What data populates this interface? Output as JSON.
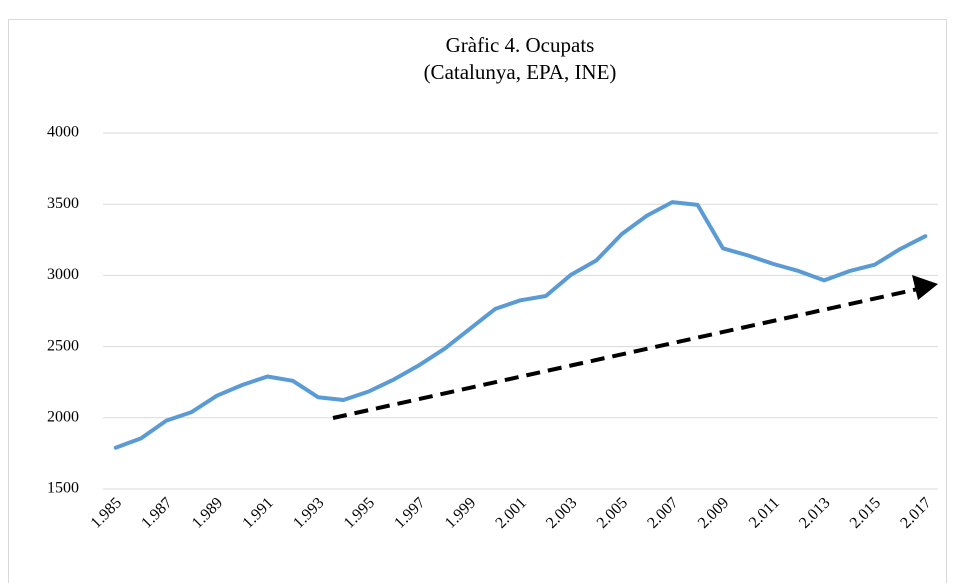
{
  "chart_data": {
    "type": "line",
    "title": "Gràfic 4. Ocupats",
    "subtitle": "(Catalunya, EPA, INE)",
    "categories": [
      "1.985",
      null,
      "1.987",
      null,
      "1.989",
      null,
      "1.991",
      null,
      "1.993",
      null,
      "1.995",
      null,
      "1.997",
      null,
      "1.999",
      null,
      "2.001",
      null,
      "2.003",
      null,
      "2.005",
      null,
      "2.007",
      null,
      "2.009",
      null,
      "2.011",
      null,
      "2.013",
      null,
      "2.015",
      null,
      "2.017"
    ],
    "series": [
      {
        "name": "Ocupats",
        "color": "#5b9bd5",
        "values": [
          1790,
          1855,
          1980,
          2040,
          2155,
          2230,
          2290,
          2260,
          2145,
          2125,
          2185,
          2270,
          2370,
          2485,
          2625,
          2765,
          2825,
          2855,
          3005,
          3105,
          3290,
          3420,
          3515,
          3495,
          3190,
          3140,
          3080,
          3030,
          2965,
          3030,
          3075,
          3185,
          3275
        ]
      }
    ],
    "ylim": [
      1500,
      4000
    ],
    "yticks": [
      1500,
      2000,
      2500,
      3000,
      3500,
      4000
    ],
    "grid": true
  }
}
